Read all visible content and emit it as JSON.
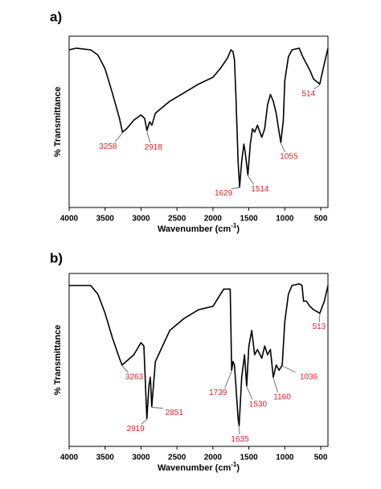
{
  "chart_data": [
    {
      "type": "line",
      "panel_label": "a)",
      "y_label": "% Transmittance",
      "x_label": [
        "Wavenumber (cm",
        "-1",
        ")"
      ],
      "xlim": [
        4000,
        400
      ],
      "ylim": [
        0,
        100
      ],
      "xticks": [
        4000,
        3500,
        3000,
        2500,
        2000,
        1500,
        1000,
        500
      ],
      "color": "#000000",
      "annotation_color": "#e31e24",
      "x": [
        4000,
        3900,
        3700,
        3600,
        3500,
        3400,
        3300,
        3258,
        3200,
        3100,
        3000,
        2950,
        2918,
        2880,
        2850,
        2800,
        2600,
        2400,
        2200,
        2000,
        1900,
        1800,
        1750,
        1720,
        1700,
        1680,
        1650,
        1629,
        1600,
        1570,
        1550,
        1514,
        1480,
        1450,
        1420,
        1380,
        1320,
        1280,
        1240,
        1200,
        1160,
        1120,
        1080,
        1055,
        1020,
        1000,
        950,
        900,
        800,
        750,
        700,
        650,
        600,
        514,
        450,
        400
      ],
      "values": [
        92,
        93,
        92,
        89,
        81,
        67,
        52,
        44,
        46,
        51,
        54,
        52,
        45,
        50,
        48,
        55,
        62,
        67,
        72,
        76,
        81,
        87,
        92,
        91,
        86,
        65,
        27,
        12,
        27,
        37,
        32,
        19,
        37,
        46,
        44,
        48,
        41,
        46,
        60,
        66,
        62,
        55,
        44,
        38,
        51,
        74,
        88,
        92,
        93,
        88,
        84,
        80,
        75,
        72,
        84,
        93
      ],
      "peaks": [
        3258,
        2918,
        1629,
        1514,
        1055,
        514
      ]
    },
    {
      "type": "line",
      "panel_label": "b)",
      "y_label": "% Transmittance",
      "x_label": [
        "Wavenumber (cm",
        "-1",
        ")"
      ],
      "xlim": [
        4000,
        400
      ],
      "ylim": [
        0,
        100
      ],
      "xticks": [
        4000,
        3500,
        3000,
        2500,
        2000,
        1500,
        1000,
        500
      ],
      "color": "#000000",
      "annotation_color": "#e31e24",
      "x": [
        4000,
        3700,
        3600,
        3500,
        3400,
        3300,
        3263,
        3100,
        3000,
        2960,
        2919,
        2890,
        2870,
        2851,
        2800,
        2600,
        2400,
        2200,
        2000,
        1850,
        1760,
        1739,
        1720,
        1700,
        1680,
        1650,
        1635,
        1600,
        1560,
        1530,
        1500,
        1460,
        1420,
        1380,
        1320,
        1280,
        1240,
        1200,
        1160,
        1120,
        1080,
        1036,
        1000,
        950,
        900,
        800,
        760,
        740,
        700,
        650,
        600,
        513,
        450,
        400
      ],
      "values": [
        93,
        93,
        88,
        77,
        63,
        51,
        47,
        53,
        60,
        58,
        16,
        35,
        40,
        23,
        49,
        67,
        74,
        79,
        81,
        91,
        91,
        44,
        49,
        47,
        35,
        16,
        12,
        40,
        53,
        35,
        58,
        67,
        53,
        56,
        51,
        58,
        53,
        56,
        40,
        47,
        44,
        47,
        72,
        88,
        93,
        94,
        93,
        84,
        84,
        81,
        79,
        77,
        84,
        93
      ],
      "peaks": [
        3263,
        2919,
        2851,
        1739,
        1635,
        1530,
        1160,
        1036,
        513
      ]
    }
  ]
}
